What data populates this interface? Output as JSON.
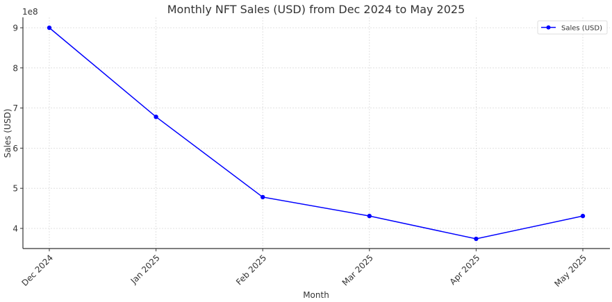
{
  "chart_data": {
    "type": "line",
    "title": "Monthly NFT Sales (USD) from Dec 2024 to May 2025",
    "xlabel": "Month",
    "ylabel": "Sales (USD)",
    "y_offset_label": "1e8",
    "categories": [
      "Dec 2024",
      "Jan 2025",
      "Feb 2025",
      "Mar 2025",
      "Apr 2025",
      "May 2025"
    ],
    "series": [
      {
        "name": "Sales (USD)",
        "color": "#0000ff",
        "marker": "circle",
        "values": [
          900000000,
          678000000,
          478000000,
          431000000,
          374000000,
          431000000
        ]
      }
    ],
    "yticks": [
      4,
      5,
      6,
      7,
      8,
      9
    ],
    "ytick_labels": [
      "4",
      "5",
      "6",
      "7",
      "8",
      "9"
    ],
    "ylim": [
      349000000,
      923000000
    ],
    "grid": true,
    "legend_position": "upper right"
  }
}
